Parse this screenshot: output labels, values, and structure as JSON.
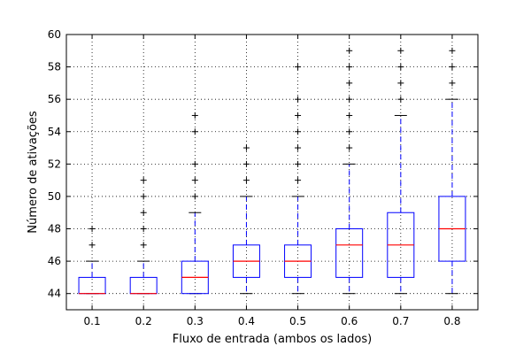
{
  "chart_data": {
    "type": "box",
    "title": "",
    "xlabel": "Fluxo de entrada (ambos os lados)",
    "ylabel": "Número de ativações",
    "ylim": [
      43,
      60
    ],
    "yticks": [
      44,
      46,
      48,
      50,
      52,
      54,
      56,
      58,
      60
    ],
    "grid": true,
    "categories": [
      "0.1",
      "0.2",
      "0.3",
      "0.4",
      "0.5",
      "0.6",
      "0.7",
      "0.8"
    ],
    "boxes": [
      {
        "label": "0.1",
        "whisker_low": 44,
        "q1": 44,
        "median": 44,
        "q3": 45,
        "whisker_high": 46,
        "outliers": [
          47,
          48
        ]
      },
      {
        "label": "0.2",
        "whisker_low": 44,
        "q1": 44,
        "median": 44,
        "q3": 45,
        "whisker_high": 46,
        "outliers": [
          47,
          48,
          49,
          50,
          51
        ]
      },
      {
        "label": "0.3",
        "whisker_low": 44,
        "q1": 44,
        "median": 45,
        "q3": 46,
        "whisker_high": 49,
        "outliers": [
          50,
          51,
          52,
          54,
          55
        ]
      },
      {
        "label": "0.4",
        "whisker_low": 44,
        "q1": 45,
        "median": 46,
        "q3": 47,
        "whisker_high": 50,
        "outliers": [
          51,
          52,
          53
        ]
      },
      {
        "label": "0.5",
        "whisker_low": 44,
        "q1": 45,
        "median": 46,
        "q3": 47,
        "whisker_high": 50,
        "outliers": [
          51,
          52,
          53,
          54,
          55,
          56,
          58
        ]
      },
      {
        "label": "0.6",
        "whisker_low": 44,
        "q1": 45,
        "median": 47,
        "q3": 48,
        "whisker_high": 52,
        "outliers": [
          53,
          54,
          55,
          56,
          57,
          58,
          59
        ]
      },
      {
        "label": "0.7",
        "whisker_low": 44,
        "q1": 45,
        "median": 47,
        "q3": 49,
        "whisker_high": 55,
        "outliers": [
          56,
          57,
          58,
          59
        ]
      },
      {
        "label": "0.8",
        "whisker_low": 44,
        "q1": 46,
        "median": 48,
        "q3": 50,
        "whisker_high": 56,
        "outliers": [
          57,
          58,
          59
        ]
      }
    ],
    "colors": {
      "box": "#0000ff",
      "median": "#ff0000",
      "whisker": "#0000ff",
      "cap": "#000000",
      "outlier": "#000000",
      "grid": "#000000",
      "frame": "#000000"
    }
  }
}
